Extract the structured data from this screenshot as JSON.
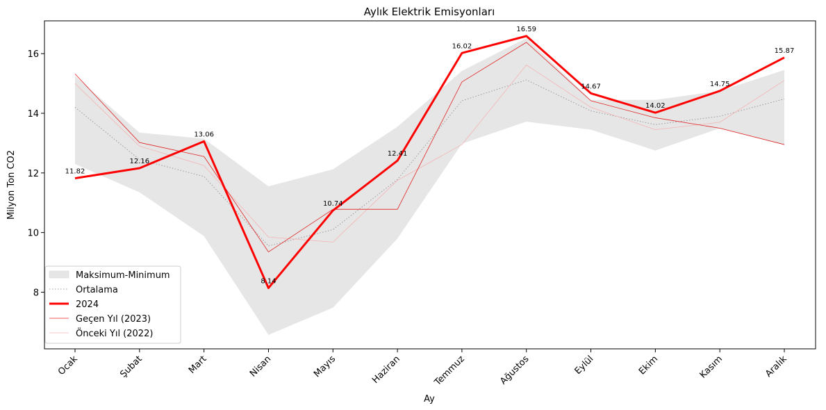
{
  "chart_data": {
    "type": "line",
    "title": "Aylık Elektrik Emisyonları",
    "xlabel": "Ay",
    "ylabel": "Milyon Ton CO2",
    "categories": [
      "Ocak",
      "Şubat",
      "Mart",
      "Nisan",
      "Mayıs",
      "Haziran",
      "Temmuz",
      "Ağustos",
      "Eylül",
      "Ekim",
      "Kasım",
      "Aralık"
    ],
    "ylim": [
      6.1,
      17.1
    ],
    "yticks": [
      8,
      10,
      12,
      14,
      16
    ],
    "legend_position": "lower-left",
    "band": {
      "name": "Maksimum-Minimum",
      "color": "#e6e6e6",
      "upper": [
        15.25,
        13.35,
        13.15,
        11.55,
        12.12,
        13.55,
        15.42,
        16.52,
        14.45,
        14.45,
        14.75,
        15.45
      ],
      "lower": [
        12.3,
        11.35,
        9.88,
        6.57,
        7.48,
        9.8,
        12.98,
        13.72,
        13.45,
        12.75,
        13.5,
        12.95
      ]
    },
    "series": [
      {
        "name": "Ortalama",
        "style": "dotted",
        "color": "#999999",
        "values": [
          14.2,
          12.45,
          11.88,
          9.55,
          10.1,
          11.78,
          14.42,
          15.12,
          14.08,
          13.62,
          13.9,
          14.48
        ]
      },
      {
        "name": "2024",
        "style": "solid",
        "color": "#ff0000",
        "values": [
          11.82,
          12.16,
          13.06,
          8.14,
          10.74,
          12.41,
          16.02,
          16.59,
          14.67,
          14.02,
          14.75,
          15.87
        ],
        "data_labels": [
          "11.82",
          "12.16",
          "13.06",
          "8.14",
          "10.74",
          "12.41",
          "16.02",
          "16.59",
          "14.67",
          "14.02",
          "14.75",
          "15.87"
        ]
      },
      {
        "name": "Geçen Yıl (2023)",
        "style": "solid",
        "color": "#e02020",
        "values": [
          15.32,
          13.02,
          12.55,
          9.35,
          10.78,
          10.78,
          15.05,
          16.38,
          14.42,
          13.85,
          13.5,
          12.95
        ]
      },
      {
        "name": "Önceki Yıl (2022)",
        "style": "solid",
        "color": "#f4b4b4",
        "values": [
          15.0,
          12.9,
          12.25,
          9.85,
          9.68,
          11.75,
          12.95,
          15.62,
          14.2,
          13.45,
          13.7,
          15.1
        ]
      }
    ]
  }
}
